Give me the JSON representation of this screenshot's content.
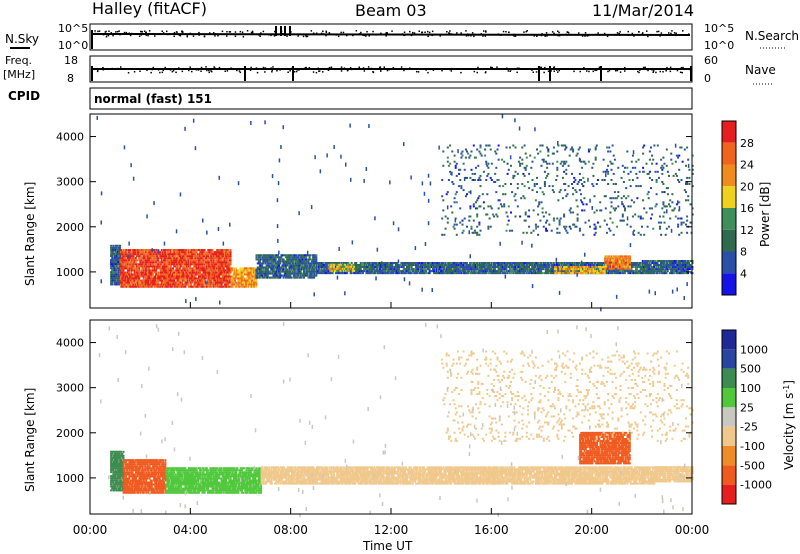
{
  "header": {
    "station": "Halley (fitACF)",
    "beam": "Beam 03",
    "date": "11/Mar/2014"
  },
  "strips": {
    "nsky_label": "N.Sky",
    "nsky_ticks": [
      "10^5",
      "10^0"
    ],
    "nsearch_label": "N.Search",
    "nsearch_ticks": [
      "10^5",
      "10^0"
    ],
    "freq_label": "Freq.",
    "freq_unit": "[MHz]",
    "freq_ticks": [
      "18",
      "8"
    ],
    "nave_label": "Nave",
    "nave_ticks": [
      "60",
      "0"
    ],
    "cpid_label": "CPID",
    "cpid_text": "normal (fast) 151"
  },
  "colors": {
    "power_scale": [
      "#1414e6",
      "#2a4fa8",
      "#2f6b4f",
      "#3f8f5a",
      "#f0d21e",
      "#f08c1e",
      "#f0641e",
      "#e61e1e"
    ],
    "velocity_scale": [
      "#e61e1e",
      "#f05a1e",
      "#f08c28",
      "#f0c88c",
      "#c8c8c0",
      "#50c83c",
      "#3c8c50",
      "#2846a0",
      "#1e2896"
    ]
  },
  "chart_data": [
    {
      "type": "heatmap",
      "quantity": "power",
      "x_range_hours": [
        0,
        24
      ],
      "xticks": [
        "00:00",
        "04:00",
        "08:00",
        "12:00",
        "16:00",
        "20:00",
        "00:00"
      ],
      "ylabel": "Slant Range [km]",
      "ylim": [
        200,
        4500
      ],
      "yticks": [
        "1000",
        "2000",
        "3000",
        "4000"
      ],
      "colorbar": {
        "label": "Power [dB]",
        "ticks": [
          "28",
          "24",
          "20",
          "16",
          "12",
          "8",
          "4"
        ],
        "range": [
          0,
          32
        ]
      },
      "regions": [
        {
          "t0": 0.8,
          "t1": 1.2,
          "r0": 700,
          "r1": 1600,
          "value": 8
        },
        {
          "t0": 1.2,
          "t1": 5.6,
          "r0": 650,
          "r1": 1500,
          "value": 28
        },
        {
          "t0": 5.6,
          "t1": 6.6,
          "r0": 650,
          "r1": 1100,
          "value": 22
        },
        {
          "t0": 6.6,
          "t1": 9.0,
          "r0": 850,
          "r1": 1350,
          "value": 8
        },
        {
          "t0": 9.0,
          "t1": 17.5,
          "r0": 950,
          "r1": 1200,
          "value": 8
        },
        {
          "t0": 9.5,
          "t1": 10.5,
          "r0": 1000,
          "r1": 1150,
          "value": 18
        },
        {
          "t0": 17.5,
          "t1": 22.0,
          "r0": 950,
          "r1": 1200,
          "value": 8
        },
        {
          "t0": 18.5,
          "t1": 20.5,
          "r0": 950,
          "r1": 1100,
          "value": 20
        },
        {
          "t0": 20.5,
          "t1": 21.5,
          "r0": 1050,
          "r1": 1350,
          "value": 24
        },
        {
          "t0": 22.0,
          "t1": 24.0,
          "r0": 950,
          "r1": 1250,
          "value": 8
        },
        {
          "t0": 14.0,
          "t1": 24.0,
          "r0": 1800,
          "r1": 3800,
          "value": 8,
          "sparse": true
        }
      ]
    },
    {
      "type": "heatmap",
      "quantity": "velocity",
      "x_range_hours": [
        0,
        24
      ],
      "xticks": [
        "00:00",
        "04:00",
        "08:00",
        "12:00",
        "16:00",
        "20:00",
        "00:00"
      ],
      "xlabel": "Time UT",
      "ylabel": "Slant Range [km]",
      "ylim": [
        200,
        4500
      ],
      "yticks": [
        "1000",
        "2000",
        "3000",
        "4000"
      ],
      "colorbar": {
        "label": "Velocity [m s^-1]",
        "ticks": [
          "1000",
          "500",
          "100",
          "25",
          "-25",
          "-100",
          "-500",
          "-1000"
        ]
      },
      "regions": [
        {
          "t0": 0.8,
          "t1": 1.3,
          "r0": 700,
          "r1": 1600,
          "value": 200
        },
        {
          "t0": 1.3,
          "t1": 3.0,
          "r0": 650,
          "r1": 1400,
          "value": -150
        },
        {
          "t0": 3.0,
          "t1": 6.8,
          "r0": 650,
          "r1": 1200,
          "value": 60
        },
        {
          "t0": 6.8,
          "t1": 22.5,
          "r0": 850,
          "r1": 1250,
          "value": 0
        },
        {
          "t0": 19.5,
          "t1": 21.5,
          "r0": 1300,
          "r1": 2000,
          "value": -300
        },
        {
          "t0": 22.5,
          "t1": 24.0,
          "r0": 900,
          "r1": 1250,
          "value": 0
        },
        {
          "t0": 14.0,
          "t1": 24.0,
          "r0": 1800,
          "r1": 3800,
          "value": 0,
          "sparse": true
        }
      ]
    }
  ]
}
